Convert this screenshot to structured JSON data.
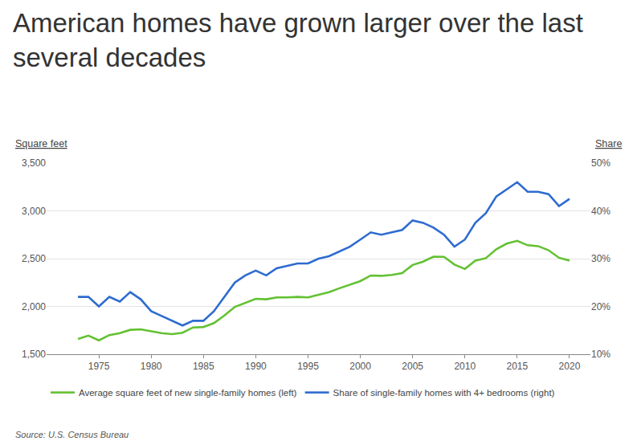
{
  "chart_data": {
    "type": "line",
    "title": "American homes have grown larger over the last several decades",
    "source": "Source: U.S. Census Bureau",
    "ylabel": "Square feet",
    "y2label": "Share",
    "x": [
      1973,
      1974,
      1975,
      1976,
      1977,
      1978,
      1979,
      1980,
      1981,
      1982,
      1983,
      1984,
      1985,
      1986,
      1987,
      1988,
      1989,
      1990,
      1991,
      1992,
      1993,
      1994,
      1995,
      1996,
      1997,
      1998,
      1999,
      2000,
      2001,
      2002,
      2003,
      2004,
      2005,
      2006,
      2007,
      2008,
      2009,
      2010,
      2011,
      2012,
      2013,
      2014,
      2015,
      2016,
      2017,
      2018,
      2019,
      2020
    ],
    "series": [
      {
        "name": "Average square feet of new single-family homes (left)",
        "color": "#63c132",
        "values": [
          1660,
          1695,
          1645,
          1700,
          1720,
          1755,
          1760,
          1740,
          1720,
          1710,
          1725,
          1780,
          1785,
          1825,
          1905,
          1995,
          2035,
          2080,
          2075,
          2095,
          2095,
          2100,
          2095,
          2120,
          2150,
          2190,
          2225,
          2265,
          2324,
          2320,
          2330,
          2349,
          2434,
          2469,
          2521,
          2519,
          2438,
          2392,
          2480,
          2505,
          2598,
          2657,
          2687,
          2640,
          2631,
          2588,
          2509,
          2480
        ]
      },
      {
        "name": "Share of single-family homes with 4+ bedrooms (right)",
        "color": "#2e6bd0",
        "axis": "y2",
        "values": [
          22,
          22,
          20,
          22,
          21,
          23,
          21.5,
          19,
          18,
          17,
          16,
          17,
          17,
          19,
          22,
          25,
          26.5,
          27.5,
          26.5,
          28,
          28.5,
          29,
          29,
          30,
          30.5,
          31.5,
          32.5,
          34,
          35.5,
          35,
          35.5,
          36,
          38,
          37.5,
          36.5,
          35,
          32.5,
          34,
          37.5,
          39.5,
          43,
          44.5,
          46,
          44,
          44,
          43.5,
          41,
          42.5
        ]
      }
    ],
    "xlim": [
      1970,
      2022
    ],
    "xticks": [
      1975,
      1980,
      1985,
      1990,
      1995,
      2000,
      2005,
      2010,
      2015,
      2020
    ],
    "ylim": [
      1500,
      3500
    ],
    "yticks": [
      {
        "value": 1500,
        "label": "1,500"
      },
      {
        "value": 2000,
        "label": "2,000"
      },
      {
        "value": 2500,
        "label": "2,500"
      },
      {
        "value": 3000,
        "label": "3,000"
      },
      {
        "value": 3500,
        "label": "3,500"
      }
    ],
    "y2lim": [
      10,
      50
    ],
    "y2ticks": [
      {
        "value": 10,
        "label": "10%"
      },
      {
        "value": 20,
        "label": "20%"
      },
      {
        "value": 30,
        "label": "30%"
      },
      {
        "value": 40,
        "label": "40%"
      },
      {
        "value": 50,
        "label": "50%"
      }
    ],
    "grid": true,
    "legend": "bottom"
  }
}
